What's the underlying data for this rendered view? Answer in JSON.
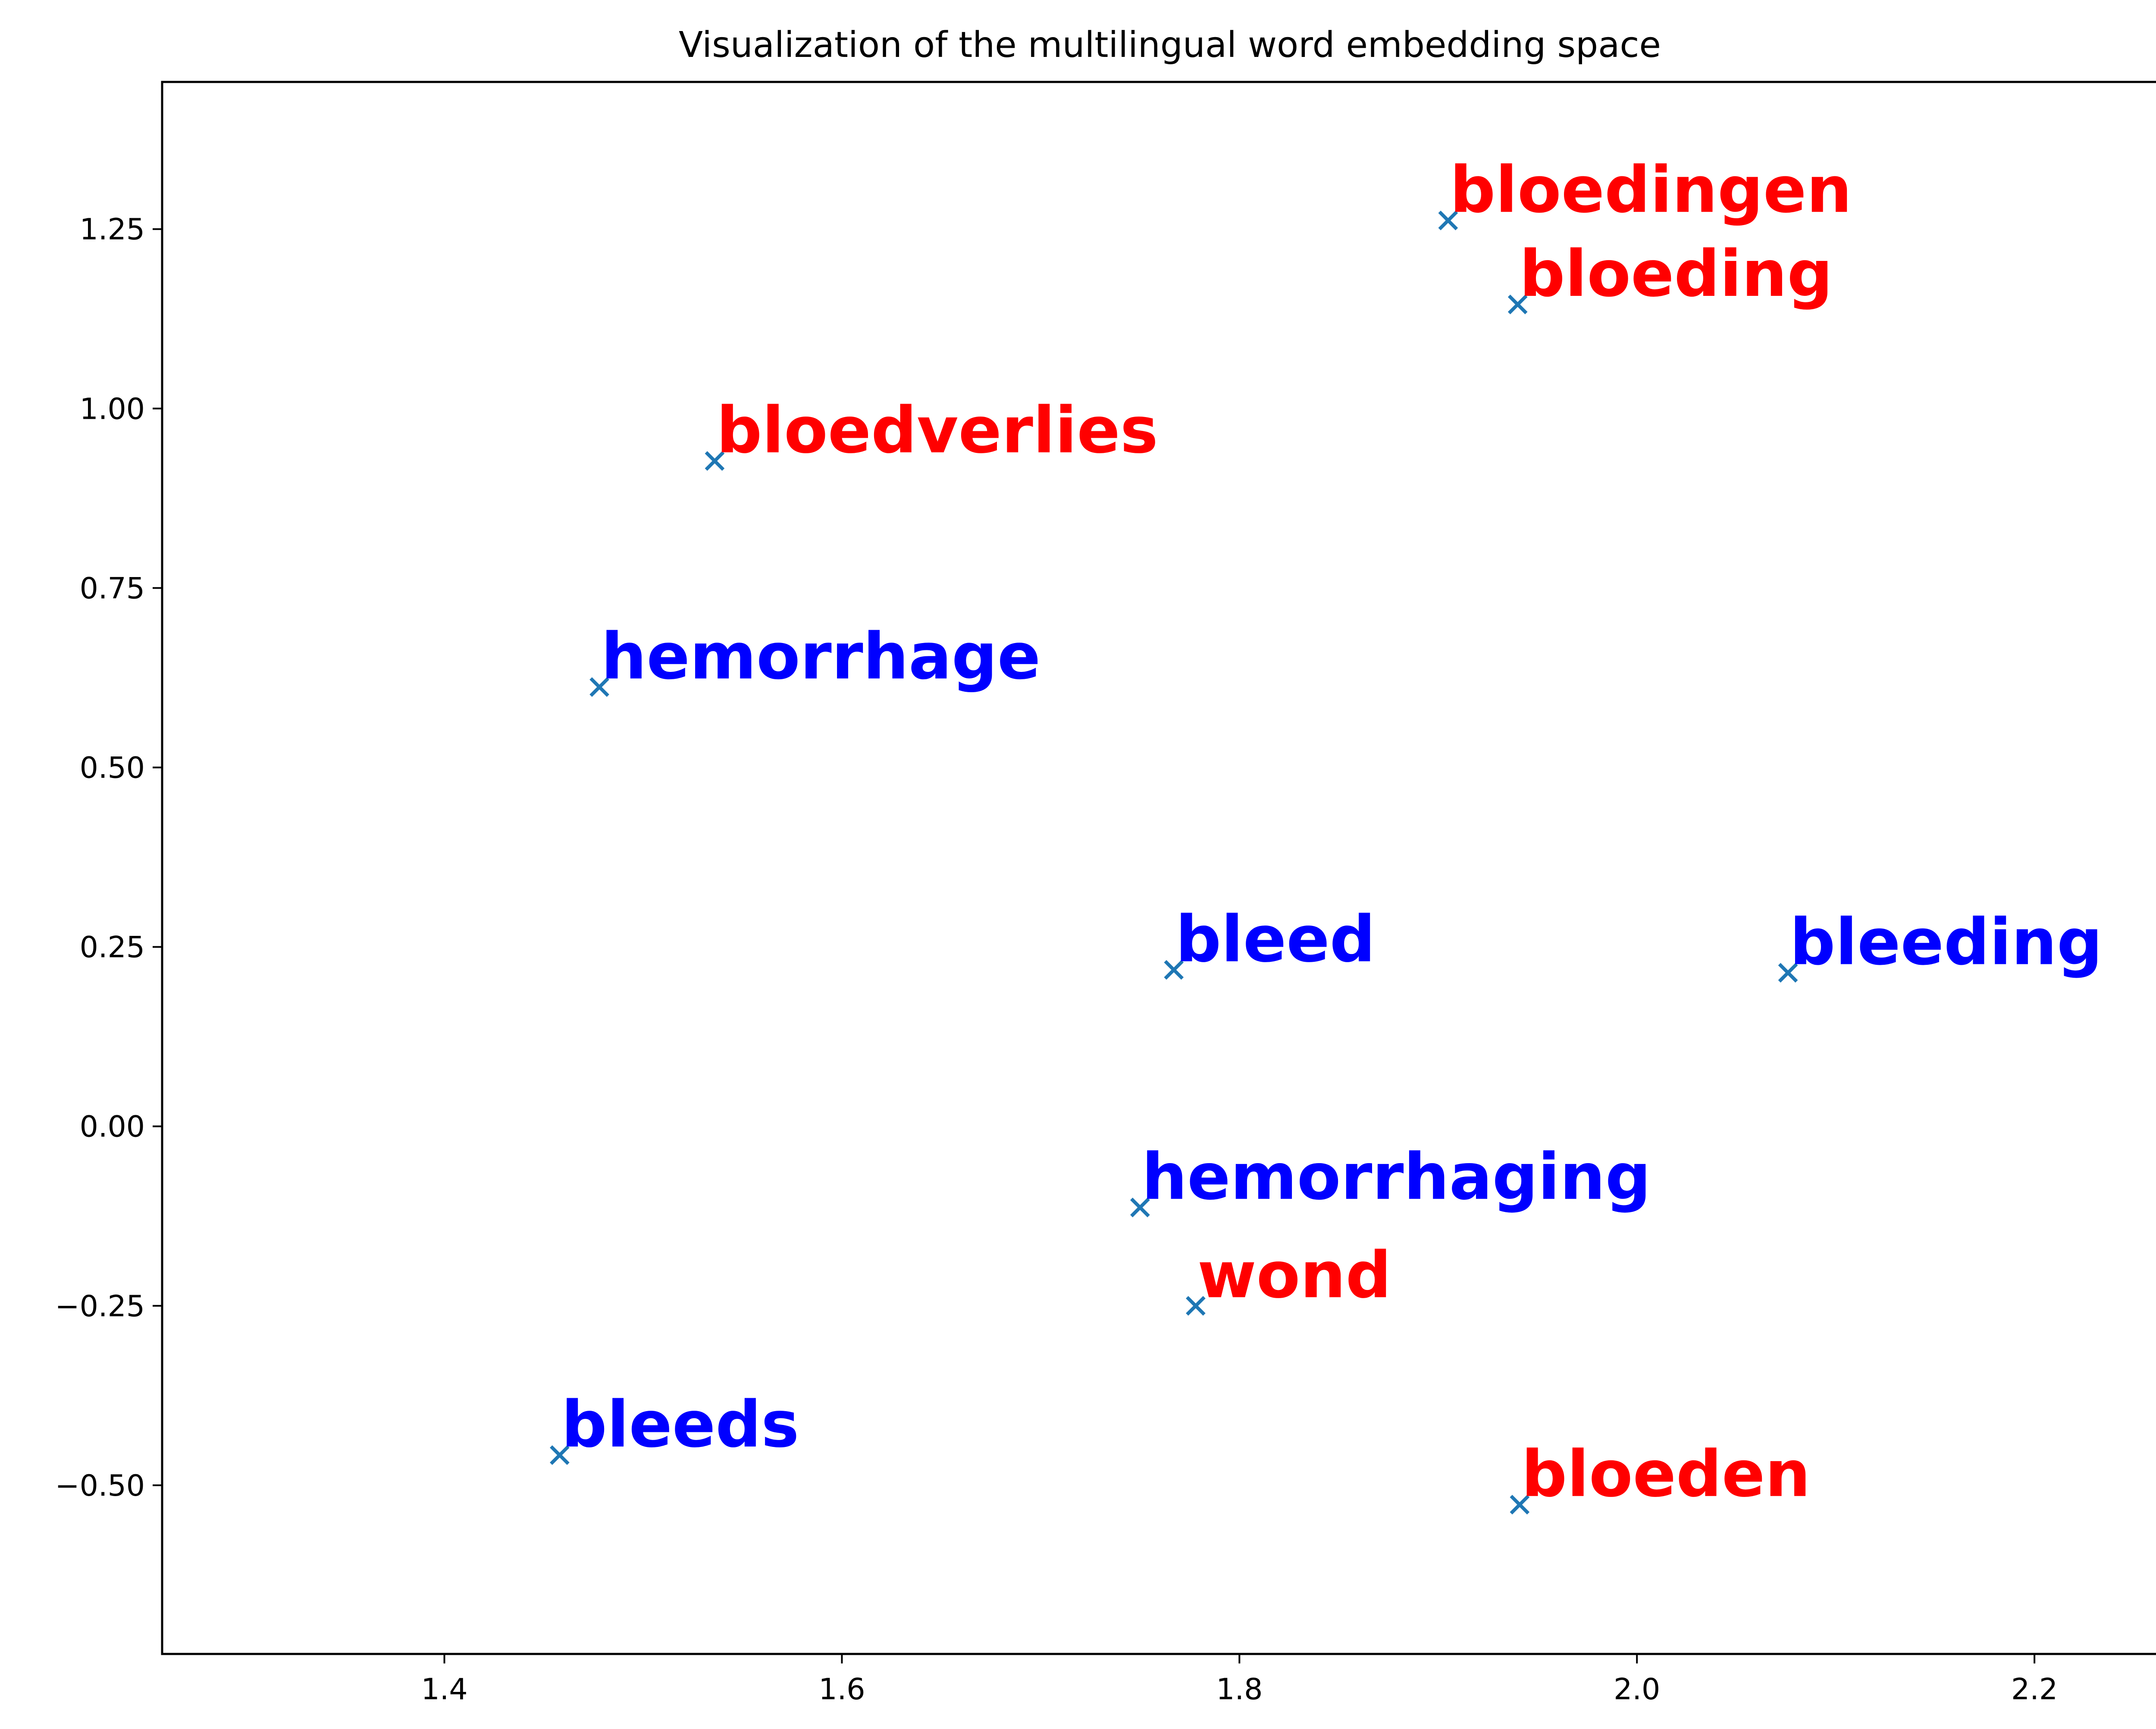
{
  "chart_data": {
    "type": "scatter",
    "title": "Visualization of the multilingual word embedding space",
    "xlabel": "",
    "ylabel": "",
    "xlim": [
      1.258,
      2.272
    ],
    "ylim": [
      -0.735,
      1.455
    ],
    "x_ticks": [
      1.4,
      1.6,
      1.8,
      2.0,
      2.2
    ],
    "x_tick_labels": [
      "1.4",
      "1.6",
      "1.8",
      "2.0",
      "2.2"
    ],
    "y_ticks": [
      1.25,
      1.0,
      0.75,
      0.5,
      0.25,
      0.0,
      -0.25,
      -0.5
    ],
    "y_tick_labels": [
      "1.25",
      "1.00",
      "0.75",
      "0.50",
      "0.25",
      "0.00",
      "−0.25",
      "−0.50"
    ],
    "grid": false,
    "marker": "x",
    "marker_color": "#1f77b4",
    "points": [
      {
        "label": "bloedingen",
        "x": 1.905,
        "y": 1.262,
        "color": "#ff0000"
      },
      {
        "label": "bloeding",
        "x": 1.94,
        "y": 1.145,
        "color": "#ff0000"
      },
      {
        "label": "bloedverlies",
        "x": 1.536,
        "y": 0.927,
        "color": "#ff0000"
      },
      {
        "label": "hemorrhage",
        "x": 1.478,
        "y": 0.612,
        "color": "#0000ff"
      },
      {
        "label": "bleed",
        "x": 1.767,
        "y": 0.218,
        "color": "#0000ff"
      },
      {
        "label": "bleeding",
        "x": 2.076,
        "y": 0.214,
        "color": "#0000ff"
      },
      {
        "label": "hemorrhaging",
        "x": 1.75,
        "y": -0.113,
        "color": "#0000ff"
      },
      {
        "label": "wond",
        "x": 1.778,
        "y": -0.25,
        "color": "#ff0000"
      },
      {
        "label": "bleeds",
        "x": 1.458,
        "y": -0.458,
        "color": "#0000ff"
      },
      {
        "label": "bloeden",
        "x": 1.941,
        "y": -0.527,
        "color": "#ff0000"
      }
    ]
  }
}
